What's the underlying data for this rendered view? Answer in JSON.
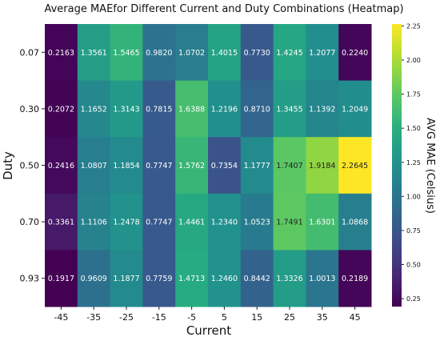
{
  "chart_data": {
    "type": "heatmap",
    "title": "Average MAEfor Different  Current and Duty Combinations (Heatmap)",
    "xlabel": "Current",
    "ylabel": "Duty",
    "x": [
      "-45",
      "-35",
      "-25",
      "-15",
      "-5",
      "5",
      "15",
      "25",
      "35",
      "45"
    ],
    "y": [
      "0.07",
      "0.30",
      "0.50",
      "0.70",
      "0.93"
    ],
    "values": [
      [
        0.2163,
        1.3561,
        1.5465,
        0.982,
        1.0702,
        1.4015,
        0.773,
        1.4245,
        1.2077,
        0.224
      ],
      [
        0.2072,
        1.1652,
        1.3143,
        0.7815,
        1.6388,
        1.2196,
        0.871,
        1.3455,
        1.1392,
        1.2049
      ],
      [
        0.2416,
        1.0807,
        1.1854,
        0.7747,
        1.5762,
        0.7354,
        1.1777,
        1.7407,
        1.9184,
        2.2645
      ],
      [
        0.3361,
        1.1106,
        1.2478,
        0.7747,
        1.4461,
        1.234,
        1.0523,
        1.7491,
        1.6301,
        1.0868
      ],
      [
        0.1917,
        0.9609,
        1.1877,
        0.7759,
        1.4713,
        1.246,
        0.8442,
        1.3326,
        1.0013,
        0.2189
      ]
    ],
    "value_labels": [
      [
        "0.2163",
        "1.3561",
        "1.5465",
        "0.9820",
        "1.0702",
        "1.4015",
        "0.7730",
        "1.4245",
        "1.2077",
        "0.2240"
      ],
      [
        "0.2072",
        "1.1652",
        "1.3143",
        "0.7815",
        "1.6388",
        "1.2196",
        "0.8710",
        "1.3455",
        "1.1392",
        "1.2049"
      ],
      [
        "0.2416",
        "1.0807",
        "1.1854",
        "0.7747",
        "1.5762",
        "0.7354",
        "1.1777",
        "1.7407",
        "1.9184",
        "2.2645"
      ],
      [
        "0.3361",
        "1.1106",
        "1.2478",
        "0.7747",
        "1.4461",
        "1.2340",
        "1.0523",
        "1.7491",
        "1.6301",
        "1.0868"
      ],
      [
        "0.1917",
        "0.9609",
        "1.1877",
        "0.7759",
        "1.4713",
        "1.2460",
        "0.8442",
        "1.3326",
        "1.0013",
        "0.2189"
      ]
    ],
    "colorbar": {
      "label": "AVG MAE (Celsius)",
      "range": [
        0.1917,
        2.2645
      ],
      "ticks": [
        "0.25",
        "0.50",
        "0.75",
        "1.00",
        "1.25",
        "1.50",
        "1.75",
        "2.00",
        "2.25"
      ],
      "colormap": "viridis"
    },
    "grid": false,
    "legend": "colorbar-right"
  }
}
